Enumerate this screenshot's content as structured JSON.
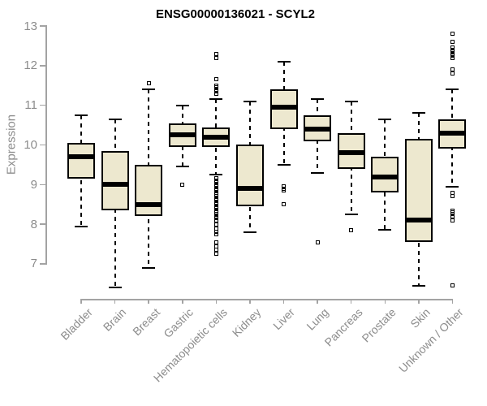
{
  "title": "ENSG00000136021 - SCYL2",
  "y_axis": {
    "label": "Expression"
  },
  "chart_data": {
    "type": "boxplot",
    "title": "ENSG00000136021 - SCYL2",
    "xlabel": "",
    "ylabel": "Expression",
    "ylim": [
      7,
      13
    ],
    "y_ticks": [
      7,
      8,
      9,
      10,
      11,
      12,
      13
    ],
    "grid": false,
    "legend": "none",
    "categories": [
      "Bladder",
      "Brain",
      "Breast",
      "Gastric",
      "Hematopoietic cells",
      "Kidney",
      "Liver",
      "Lung",
      "Pancreas",
      "Prostate",
      "Skin",
      "Unknown / Other"
    ],
    "series": [
      {
        "category": "Bladder",
        "whisker_low": 7.95,
        "q1": 9.15,
        "median": 9.7,
        "q3": 10.05,
        "whisker_high": 10.75,
        "outliers": []
      },
      {
        "category": "Brain",
        "whisker_low": 6.4,
        "q1": 8.35,
        "median": 9.0,
        "q3": 9.85,
        "whisker_high": 10.65,
        "outliers": []
      },
      {
        "category": "Breast",
        "whisker_low": 6.9,
        "q1": 8.2,
        "median": 8.5,
        "q3": 9.5,
        "whisker_high": 11.4,
        "outliers": [
          11.55
        ]
      },
      {
        "category": "Gastric",
        "whisker_low": 9.45,
        "q1": 9.95,
        "median": 10.25,
        "q3": 10.55,
        "whisker_high": 11.0,
        "outliers": [
          9.0
        ]
      },
      {
        "category": "Hematopoietic cells",
        "whisker_low": 9.25,
        "q1": 9.95,
        "median": 10.2,
        "q3": 10.45,
        "whisker_high": 11.15,
        "outliers": [
          12.3,
          12.2,
          11.65,
          11.5,
          11.45,
          11.4,
          11.35,
          11.3,
          9.15,
          9.1,
          9.05,
          9.0,
          8.95,
          8.9,
          8.85,
          8.8,
          8.75,
          8.7,
          8.65,
          8.6,
          8.55,
          8.5,
          8.45,
          8.4,
          8.35,
          8.3,
          8.25,
          8.2,
          8.15,
          8.1,
          8.0,
          7.9,
          7.8,
          7.75,
          7.55,
          7.45,
          7.35,
          7.25
        ]
      },
      {
        "category": "Kidney",
        "whisker_low": 7.8,
        "q1": 8.45,
        "median": 8.9,
        "q3": 10.0,
        "whisker_high": 11.1,
        "outliers": []
      },
      {
        "category": "Liver",
        "whisker_low": 9.5,
        "q1": 10.4,
        "median": 10.95,
        "q3": 11.4,
        "whisker_high": 12.1,
        "outliers": [
          8.95,
          8.9,
          8.85,
          8.5
        ]
      },
      {
        "category": "Lung",
        "whisker_low": 9.3,
        "q1": 10.1,
        "median": 10.4,
        "q3": 10.75,
        "whisker_high": 11.15,
        "outliers": [
          7.55
        ]
      },
      {
        "category": "Pancreas",
        "whisker_low": 8.25,
        "q1": 9.4,
        "median": 9.8,
        "q3": 10.3,
        "whisker_high": 11.1,
        "outliers": [
          7.85
        ]
      },
      {
        "category": "Prostate",
        "whisker_low": 7.85,
        "q1": 8.8,
        "median": 9.2,
        "q3": 9.7,
        "whisker_high": 10.65,
        "outliers": []
      },
      {
        "category": "Skin",
        "whisker_low": 6.45,
        "q1": 7.55,
        "median": 8.1,
        "q3": 10.15,
        "whisker_high": 10.8,
        "outliers": []
      },
      {
        "category": "Unknown / Other",
        "whisker_low": 8.95,
        "q1": 9.9,
        "median": 10.3,
        "q3": 10.65,
        "whisker_high": 11.4,
        "outliers": [
          12.8,
          12.6,
          12.45,
          12.4,
          12.35,
          12.3,
          12.25,
          12.2,
          11.9,
          11.8,
          8.8,
          8.7,
          8.35,
          8.3,
          8.25,
          8.2,
          8.1,
          6.45
        ]
      }
    ],
    "colors": {
      "box_fill": "#EDE8CF",
      "box_border": "#000000",
      "median": "#000000",
      "whisker": "#000000",
      "axis_line": "#A3A3A3",
      "axis_text": "#8C8C8C",
      "title_text": "#000000",
      "background": "#FFFFFF"
    }
  }
}
